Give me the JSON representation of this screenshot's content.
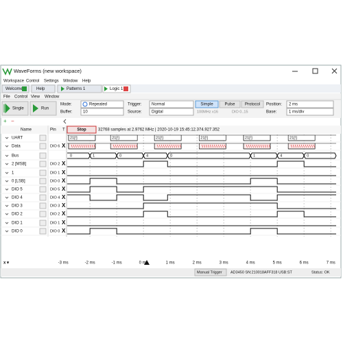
{
  "window": {
    "title": "WaveForms (new workspace)",
    "menu": [
      "Workspace",
      "Control",
      "Settings",
      "Window",
      "Help"
    ]
  },
  "tabs": [
    "Welcome",
    "Help",
    "Patterns 1",
    "Logic 1"
  ],
  "submenu": [
    "File",
    "Control",
    "View",
    "Window"
  ],
  "toolbar": {
    "single": "Single",
    "run": "Run",
    "mode_label": "Mode:",
    "mode": "Repeated",
    "buffer_label": "Buffer:",
    "buffer": "10",
    "trigger_label": "Trigger:",
    "trigger": "Normal",
    "source_label": "Source:",
    "source": "Digital",
    "trigger_types": [
      "Simple",
      "Pulse",
      "Protocol"
    ],
    "rate": "100MHz x16",
    "pins": "DIO 0..15",
    "position_label": "Position:",
    "position": "2 ms",
    "base_label": "Base:",
    "base": "1 ms/div"
  },
  "header": {
    "name": "Name",
    "pin": "Pin",
    "t": "T",
    "stop": "Stop",
    "info": "32768 samples at 2.9762 MHz | 2020-10-19 15:45:12.374.927.352"
  },
  "timeline": {
    "xlim": [
      -2.85,
      7.2
    ],
    "xticks": [
      {
        "value": -3,
        "label": "-3 ms"
      },
      {
        "value": -2,
        "label": "-2 ms"
      },
      {
        "value": -1,
        "label": "-1 ms"
      },
      {
        "value": 0,
        "label": "0 ms"
      },
      {
        "value": 1,
        "label": "1 ms"
      },
      {
        "value": 2,
        "label": "2 ms"
      },
      {
        "value": 3,
        "label": "3 ms"
      },
      {
        "value": 4,
        "label": "4 ms"
      },
      {
        "value": 5,
        "label": "5 ms"
      },
      {
        "value": 6,
        "label": "6 ms"
      },
      {
        "value": 7,
        "label": "7 ms"
      }
    ]
  },
  "signals": [
    {
      "name": "UART",
      "kind": "uart",
      "packet_label": "21[!]",
      "starts": [
        -2.8,
        -1.23,
        0.41,
        2.08,
        3.74,
        5.41
      ],
      "duration": 1.0
    },
    {
      "name": "Data",
      "pin": "DIO 6",
      "kind": "data",
      "starts": [
        -2.8,
        -1.23,
        0.41,
        2.08,
        3.74,
        5.41
      ],
      "duration": 1.0
    },
    {
      "name": "Bus",
      "kind": "bus",
      "edges": [
        -2,
        -1,
        0,
        0.9,
        4,
        5,
        6
      ],
      "labels": [
        0,
        1,
        0,
        4,
        0,
        1,
        4,
        0
      ]
    },
    {
      "name": "2 [MSB]",
      "pin": "DIO 2",
      "kind": "digital",
      "start": 0,
      "edges": [
        0,
        0.9,
        5,
        6
      ]
    },
    {
      "name": "1",
      "pin": "DIO 1",
      "kind": "digital",
      "start": 0,
      "edges": []
    },
    {
      "name": "0 [LSB]",
      "pin": "DIO 0",
      "kind": "digital",
      "start": 0,
      "edges": [
        -2,
        -1,
        4,
        5
      ]
    },
    {
      "name": "DIO 5",
      "pin": "DIO 5",
      "kind": "digital",
      "start": 0,
      "edges": [
        -2,
        -1,
        0,
        5
      ]
    },
    {
      "name": "DIO 4",
      "pin": "DIO 4",
      "kind": "digital",
      "start": 1,
      "edges": [
        -2,
        -1,
        0,
        0.9,
        4,
        5
      ]
    },
    {
      "name": "DIO 3",
      "pin": "DIO 3",
      "kind": "digital",
      "start": 0,
      "edges": [
        0,
        5
      ]
    },
    {
      "name": "DIO 2",
      "pin": "DIO 2",
      "kind": "digital",
      "start": 0,
      "edges": [
        0,
        0.9,
        5,
        6
      ]
    },
    {
      "name": "DIO 1",
      "pin": "DIO 1",
      "kind": "digital",
      "start": 0,
      "edges": []
    },
    {
      "name": "DIO 0",
      "pin": "DIO 0",
      "kind": "digital",
      "start": 0,
      "edges": [
        -2,
        -1,
        4,
        5
      ]
    }
  ],
  "status": {
    "trigger": "Manual Trigger",
    "device": "AD3450 SN:210018AFF318 USB:ST",
    "status": "Status: OK"
  }
}
